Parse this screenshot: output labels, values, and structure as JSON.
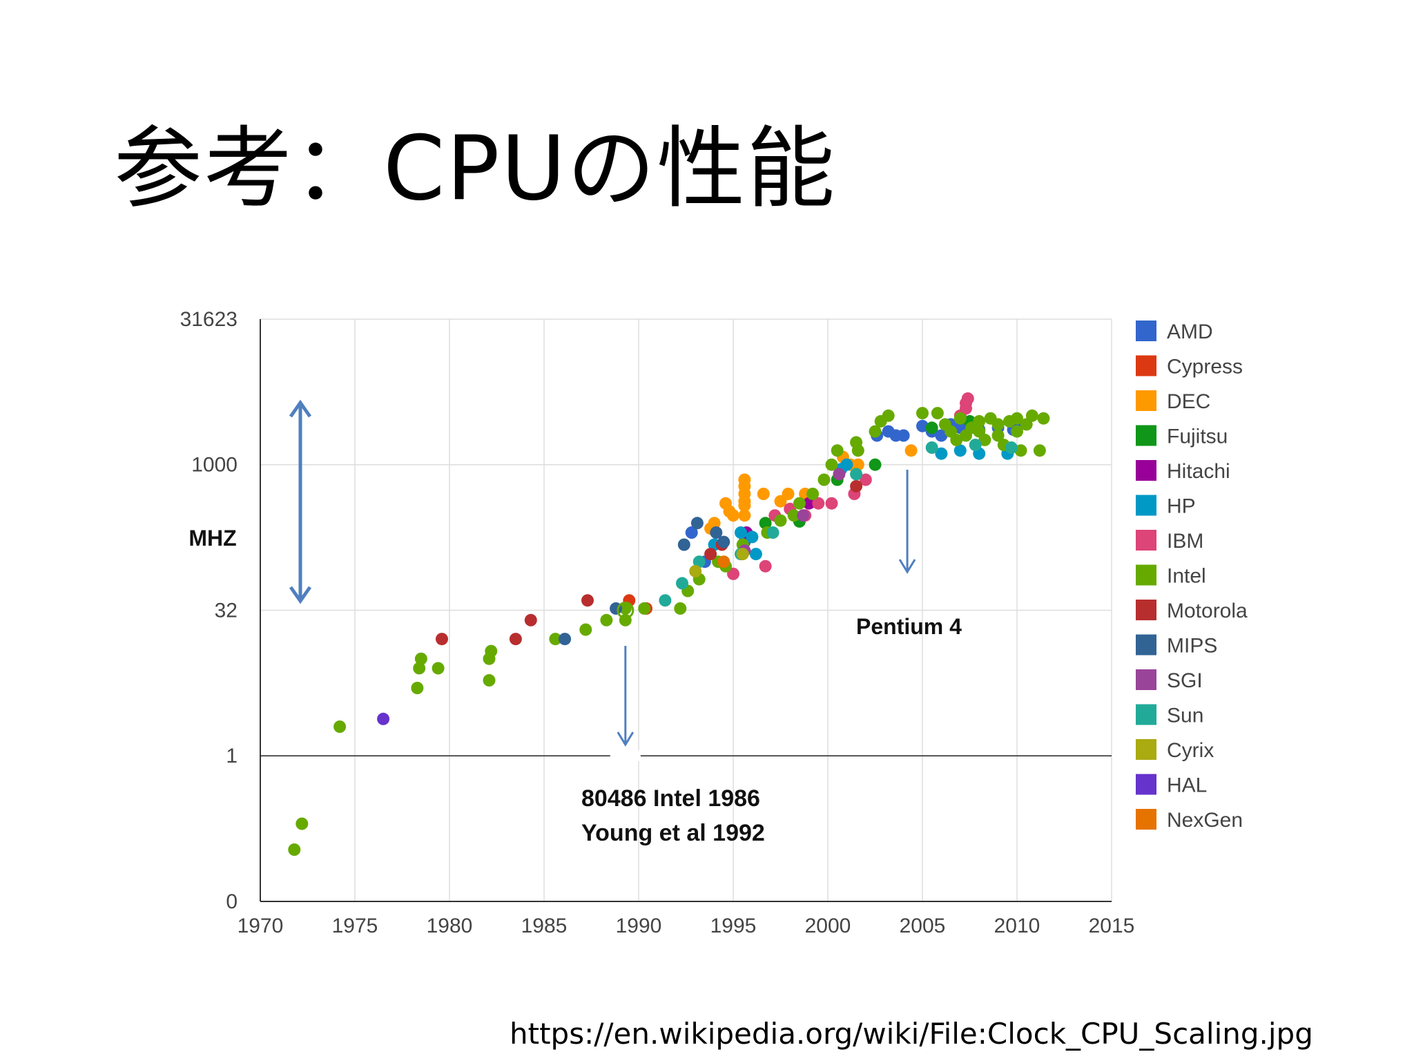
{
  "slide": {
    "title": "参考：CPUの性能",
    "source_url": "https://en.wikipedia.org/wiki/File:Clock_CPU_Scaling.jpg"
  },
  "chart_data": {
    "type": "scatter",
    "title": "",
    "xlabel": "",
    "ylabel": "MHZ",
    "xlim": [
      1970,
      2015
    ],
    "y_scale": "log",
    "y_ticks": [
      {
        "label": "0",
        "value": 0.03162
      },
      {
        "label": "1",
        "value": 1
      },
      {
        "label": "32",
        "value": 31.62
      },
      {
        "label": "1000",
        "value": 1000
      },
      {
        "label": "31623",
        "value": 31623
      }
    ],
    "x_ticks": [
      "1970",
      "1975",
      "1980",
      "1985",
      "1990",
      "1995",
      "2000",
      "2005",
      "2010",
      "2015"
    ],
    "grid": true,
    "legend_position": "right",
    "annotations": [
      {
        "text_lines": [
          "80486 Intel 1986",
          "Young et al 1992"
        ],
        "x": 1989.3,
        "y": 31.6
      },
      {
        "text_lines": [
          "Pentium 4"
        ],
        "x": 2004.2,
        "y": 1000
      }
    ],
    "series": [
      {
        "name": "AMD",
        "color": "#3366cc",
        "points": [
          [
            1992.8,
            200
          ],
          [
            1993.5,
            100
          ],
          [
            1995.6,
            160
          ],
          [
            2002.6,
            2000
          ],
          [
            2003.2,
            2200
          ],
          [
            2003.6,
            2000
          ],
          [
            2004,
            2000
          ],
          [
            2005,
            2500
          ],
          [
            2005.5,
            2200
          ],
          [
            2006,
            2000
          ],
          [
            2006.5,
            2600
          ],
          [
            2007,
            2400
          ],
          [
            2008,
            2300
          ],
          [
            2009,
            2400
          ],
          [
            2009.8,
            2300
          ],
          [
            2010,
            2600
          ]
        ]
      },
      {
        "name": "Cypress",
        "color": "#dc3912",
        "points": [
          [
            1989.5,
            40
          ],
          [
            1990.4,
            33
          ]
        ]
      },
      {
        "name": "DEC",
        "color": "#ff9900",
        "points": [
          [
            1995.6,
            700
          ],
          [
            1995.6,
            600
          ],
          [
            1995.6,
            500
          ],
          [
            1995.6,
            420
          ],
          [
            1995.6,
            380
          ],
          [
            1995.6,
            300
          ],
          [
            1994.6,
            400
          ],
          [
            1994.8,
            330
          ],
          [
            1995,
            300
          ],
          [
            1994,
            250
          ],
          [
            1993.8,
            220
          ],
          [
            1996.6,
            500
          ],
          [
            1997.5,
            420
          ],
          [
            1997.9,
            500
          ],
          [
            1998.8,
            500
          ],
          [
            2001.2,
            1000
          ],
          [
            2001.6,
            1000
          ],
          [
            2000.8,
            1200
          ],
          [
            2004.4,
            1400
          ]
        ]
      },
      {
        "name": "Fujitsu",
        "color": "#109618",
        "points": [
          [
            1996.7,
            250
          ],
          [
            1998.5,
            260
          ],
          [
            2000.5,
            700
          ],
          [
            2002.5,
            1000
          ],
          [
            2005.5,
            2400
          ],
          [
            2007.5,
            2800
          ]
        ]
      },
      {
        "name": "Hitachi",
        "color": "#990099",
        "points": [
          [
            1995.7,
            200
          ],
          [
            1999,
            400
          ]
        ]
      },
      {
        "name": "HP",
        "color": "#0099c6",
        "points": [
          [
            1994,
            150
          ],
          [
            1995.4,
            200
          ],
          [
            1996,
            180
          ],
          [
            1996.2,
            120
          ],
          [
            2000.7,
            900
          ],
          [
            2001,
            1000
          ],
          [
            2006,
            1300
          ],
          [
            2007,
            1400
          ],
          [
            2008,
            1300
          ],
          [
            2009.5,
            1300
          ]
        ]
      },
      {
        "name": "IBM",
        "color": "#dd4477",
        "points": [
          [
            1995,
            75
          ],
          [
            1996.7,
            90
          ],
          [
            1997.2,
            300
          ],
          [
            1998,
            350
          ],
          [
            1998.8,
            300
          ],
          [
            1999.5,
            400
          ],
          [
            2000.2,
            400
          ],
          [
            2001.4,
            500
          ],
          [
            2002,
            700
          ],
          [
            2007,
            3200
          ],
          [
            2007.3,
            3800
          ],
          [
            2007.3,
            4300
          ],
          [
            2007.4,
            4800
          ]
        ]
      },
      {
        "name": "Intel",
        "color": "#66aa00",
        "points": [
          [
            1971.8,
            0.108
          ],
          [
            1972.2,
            0.2
          ],
          [
            1974.2,
            2
          ],
          [
            1978.3,
            5
          ],
          [
            1978.4,
            8
          ],
          [
            1978.5,
            10
          ],
          [
            1979.4,
            8
          ],
          [
            1982.1,
            6
          ],
          [
            1982.1,
            10
          ],
          [
            1982.2,
            12
          ],
          [
            1985.6,
            16
          ],
          [
            1987.2,
            20
          ],
          [
            1988.3,
            25
          ],
          [
            1989.3,
            25
          ],
          [
            1989.3,
            33
          ],
          [
            1990.3,
            33
          ],
          [
            1992.2,
            33
          ],
          [
            1992.6,
            50
          ],
          [
            1993.2,
            66
          ],
          [
            1994.2,
            100
          ],
          [
            1994.6,
            90
          ],
          [
            1995.5,
            150
          ],
          [
            1996.8,
            200
          ],
          [
            1997.5,
            266
          ],
          [
            1998.2,
            300
          ],
          [
            1998.5,
            400
          ],
          [
            1999.2,
            500
          ],
          [
            1999.8,
            700
          ],
          [
            2000.2,
            1000
          ],
          [
            2000.5,
            1400
          ],
          [
            2001.5,
            1700
          ],
          [
            2001.6,
            1400
          ],
          [
            2002.5,
            2200
          ],
          [
            2002.8,
            2800
          ],
          [
            2003.2,
            3200
          ],
          [
            2005,
            3400
          ],
          [
            2005.8,
            3400
          ],
          [
            2006.2,
            2600
          ],
          [
            2006.5,
            2200
          ],
          [
            2006.8,
            1800
          ],
          [
            2007,
            3000
          ],
          [
            2007.3,
            2000
          ],
          [
            2007.6,
            2400
          ],
          [
            2008,
            2800
          ],
          [
            2008,
            2200
          ],
          [
            2008.3,
            1800
          ],
          [
            2008.6,
            3000
          ],
          [
            2009,
            2600
          ],
          [
            2009,
            2000
          ],
          [
            2009.3,
            1600
          ],
          [
            2009.6,
            2800
          ],
          [
            2010,
            3000
          ],
          [
            2010,
            2200
          ],
          [
            2010.2,
            1400
          ],
          [
            2010.5,
            2600
          ],
          [
            2010.8,
            3200
          ],
          [
            2011.2,
            1400
          ],
          [
            2011.4,
            3000
          ]
        ]
      },
      {
        "name": "Motorola",
        "color": "#b82e2e",
        "points": [
          [
            1979.6,
            16
          ],
          [
            1983.5,
            16
          ],
          [
            1984.3,
            25
          ],
          [
            1987.3,
            40
          ],
          [
            1993.8,
            120
          ],
          [
            1994.4,
            150
          ],
          [
            2001.5,
            600
          ]
        ]
      },
      {
        "name": "MIPS",
        "color": "#316395",
        "points": [
          [
            1986.1,
            16
          ],
          [
            1988.8,
            33
          ],
          [
            1992.4,
            150
          ],
          [
            1993.1,
            250
          ],
          [
            1994.1,
            200
          ],
          [
            1994.5,
            160
          ]
        ]
      },
      {
        "name": "SGI",
        "color": "#994499",
        "points": [
          [
            1995.6,
            130
          ],
          [
            1998.7,
            300
          ],
          [
            2000.6,
            800
          ]
        ]
      },
      {
        "name": "Sun",
        "color": "#22aa99",
        "points": [
          [
            1991.4,
            40
          ],
          [
            1992.3,
            60
          ],
          [
            1993.2,
            100
          ],
          [
            1995.4,
            120
          ],
          [
            1997.1,
            200
          ],
          [
            2001.5,
            800
          ],
          [
            2005.5,
            1500
          ],
          [
            2007.8,
            1600
          ],
          [
            2009.7,
            1500
          ]
        ]
      },
      {
        "name": "Cyrix",
        "color": "#aaaa11",
        "points": [
          [
            1993,
            80
          ],
          [
            1995.5,
            120
          ]
        ]
      },
      {
        "name": "HAL",
        "color": "#6633cc",
        "points": [
          [
            1976.5,
            2.4
          ]
        ]
      },
      {
        "name": "NexGen",
        "color": "#e67300",
        "points": [
          [
            1994.5,
            100
          ]
        ]
      }
    ]
  }
}
